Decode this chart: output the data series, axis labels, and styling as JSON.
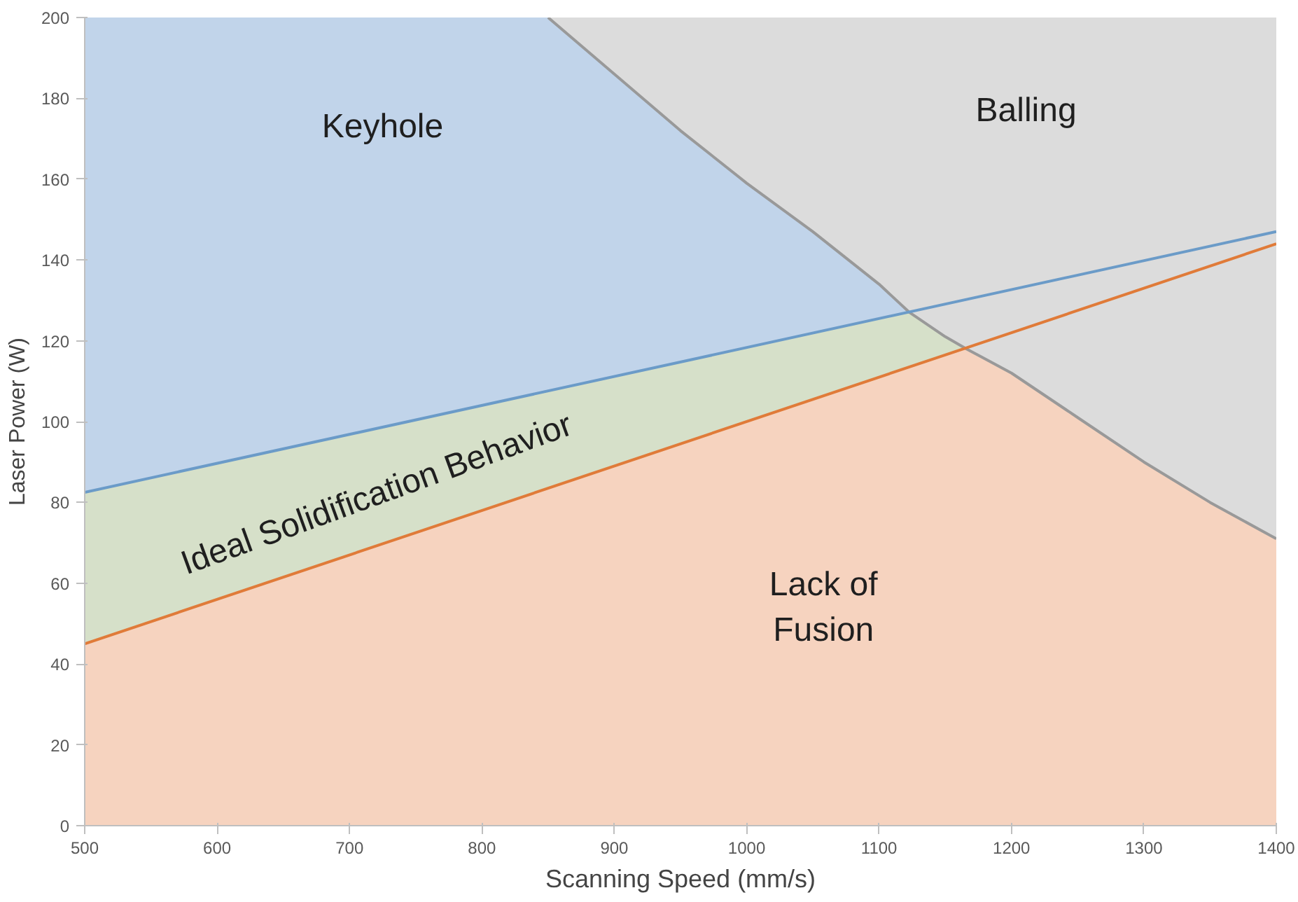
{
  "chart_data": {
    "type": "area",
    "xlabel": "Scanning Speed (mm/s)",
    "ylabel": "Laser Power (W)",
    "xlim": [
      500,
      1400
    ],
    "xticks": [
      500,
      600,
      700,
      800,
      900,
      1000,
      1100,
      1200,
      1300,
      1400
    ],
    "ylim": [
      0,
      200
    ],
    "yticks": [
      0,
      20,
      40,
      60,
      80,
      100,
      120,
      140,
      160,
      180,
      200
    ],
    "series": [
      {
        "color": "#dcdcdc",
        "x": [
          850,
          900,
          950,
          1000,
          1050,
          1100,
          1150,
          1200,
          1250,
          1300,
          1350,
          1400
        ],
        "values": [
          200,
          200,
          200,
          200,
          200,
          200,
          200,
          200,
          200,
          200,
          200,
          200
        ]
      },
      {
        "color": "#c1d4ea",
        "x": [
          500,
          600,
          700,
          800,
          850,
          900,
          950,
          1000,
          1050,
          1100,
          1123
        ],
        "values": [
          200,
          200,
          200,
          200,
          200,
          186,
          172,
          159,
          147,
          134,
          127
        ]
      },
      {
        "color": "#d6e0c9",
        "x": [
          500,
          600,
          700,
          800,
          900,
          1000,
          1100,
          1123,
          1150,
          1166
        ],
        "values": [
          82.5,
          89.7,
          96.8,
          104,
          111.2,
          118.3,
          125.5,
          127,
          121,
          118
        ]
      },
      {
        "color": "#f6d3bf",
        "x": [
          500,
          600,
          700,
          800,
          900,
          1000,
          1100,
          1166,
          1200,
          1250,
          1300,
          1350,
          1400
        ],
        "values": [
          45,
          56,
          67,
          78,
          89,
          100,
          111,
          118,
          112,
          101,
          90,
          80,
          71
        ]
      },
      {
        "type": "line",
        "color": "#999999",
        "x": [
          850,
          900,
          950,
          1000,
          1050,
          1100,
          1123,
          1150,
          1166,
          1200,
          1250,
          1300,
          1350,
          1400
        ],
        "values": [
          200,
          186,
          172,
          159,
          147,
          134,
          127,
          121,
          118,
          112,
          101,
          90,
          80,
          71
        ]
      },
      {
        "type": "line",
        "color": "#6b9bc8",
        "x": [
          500,
          1400
        ],
        "values": [
          82.5,
          147
        ]
      },
      {
        "type": "line",
        "color": "#e07b39",
        "x": [
          500,
          1400
        ],
        "values": [
          45,
          144
        ]
      }
    ],
    "annotations": [
      "Keyhole",
      "Balling",
      "Ideal Solidification Behavior",
      "Lack of\nFusion"
    ]
  }
}
